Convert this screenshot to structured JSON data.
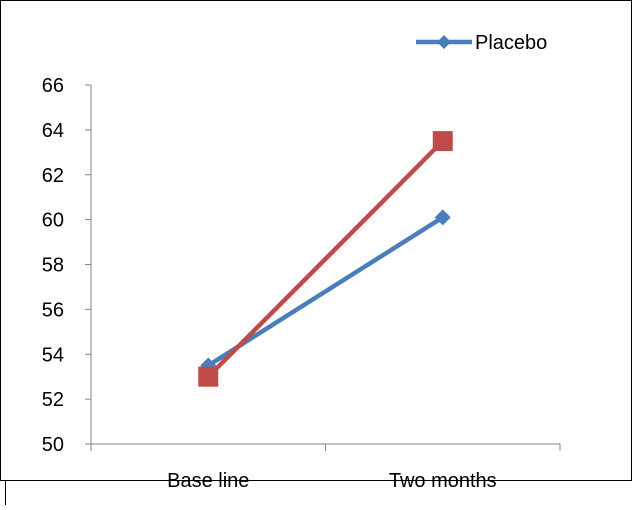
{
  "chart_data": {
    "type": "line",
    "categories": [
      "Base line",
      "Two months"
    ],
    "series": [
      {
        "name": "Placebo",
        "values": [
          53.5,
          60.1
        ],
        "color": "#4a7ebb",
        "marker": "diamond"
      },
      {
        "values": [
          53.0,
          63.5
        ],
        "color": "#be4b48",
        "marker": "square"
      }
    ],
    "ylim": [
      50,
      66
    ],
    "yticks": [
      50,
      52,
      54,
      56,
      58,
      60,
      62,
      64,
      66
    ],
    "ytick_labels": [
      "50",
      "52",
      "54",
      "56",
      "58",
      "60",
      "62",
      "64",
      "66"
    ],
    "grid": false,
    "legend": {
      "position": "top-right",
      "entries": [
        "Placebo"
      ]
    }
  }
}
